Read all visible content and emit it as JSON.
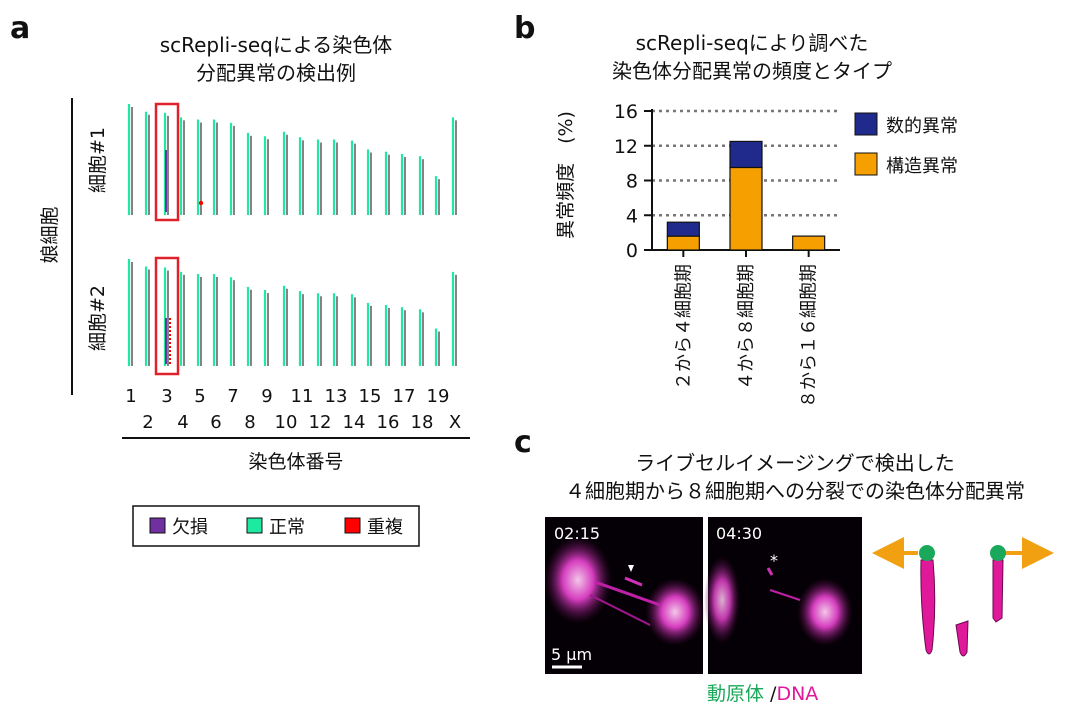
{
  "panel_a": {
    "letter": "a",
    "title_line1": "scRepli-seqによる染色体",
    "title_line2": "分配異常の検出例",
    "group_label": "娘細胞",
    "row1_label": "細胞#1",
    "row2_label": "細胞#2",
    "chrom_top_labels": [
      "1",
      "3",
      "5",
      "7",
      "9",
      "11",
      "13",
      "15",
      "17",
      "19"
    ],
    "chrom_bottom_labels": [
      "2",
      "4",
      "6",
      "8",
      "10",
      "12",
      "14",
      "16",
      "18",
      "X"
    ],
    "x_axis_label": "染色体番号",
    "legend": [
      {
        "label": "欠損",
        "color": "#7030a0"
      },
      {
        "label": "正常",
        "color": "#1de9a0"
      },
      {
        "label": "重複",
        "color": "#ff0000"
      }
    ],
    "highlight_color": "#e0202a"
  },
  "panel_b": {
    "letter": "b",
    "title_line1": "scRepli-seqにより調べた",
    "title_line2": "染色体分配異常の頻度とタイプ",
    "y_axis_label": "異常頻度　(%)",
    "legend": [
      {
        "label": "数的異常",
        "color": "#1f2a8c"
      },
      {
        "label": "構造異常",
        "color": "#f5a000"
      }
    ]
  },
  "chart_data": {
    "type": "bar",
    "stacked": true,
    "categories": [
      "２から４細胞期",
      "４から８細胞期",
      "８から１６細胞期"
    ],
    "series": [
      {
        "name": "構造異常",
        "values": [
          1.6,
          9.5,
          1.6
        ],
        "color": "#f5a000"
      },
      {
        "name": "数的異常",
        "values": [
          1.6,
          3.0,
          0
        ],
        "color": "#1f2a8c"
      }
    ],
    "ylabel": "異常頻度　(%)",
    "ylim": [
      0,
      16
    ],
    "yticks": [
      0,
      4,
      8,
      12,
      16
    ],
    "grid": true,
    "legend_position": "right"
  },
  "panel_c": {
    "letter": "c",
    "title_line1": "ライブセルイメージングで検出した",
    "title_line2": "４細胞期から８細胞期への分裂での染色体分配異常",
    "time1": "02:15",
    "time2": "04:30",
    "scale_bar": "5 μm",
    "asterisk": "*",
    "caption_kinetochore": "動原体",
    "caption_sep": " /",
    "caption_dna": "DNA",
    "kinetochore_color": "#1aa85a",
    "dna_color": "#e0189a",
    "arrow_color": "#f0a010"
  }
}
